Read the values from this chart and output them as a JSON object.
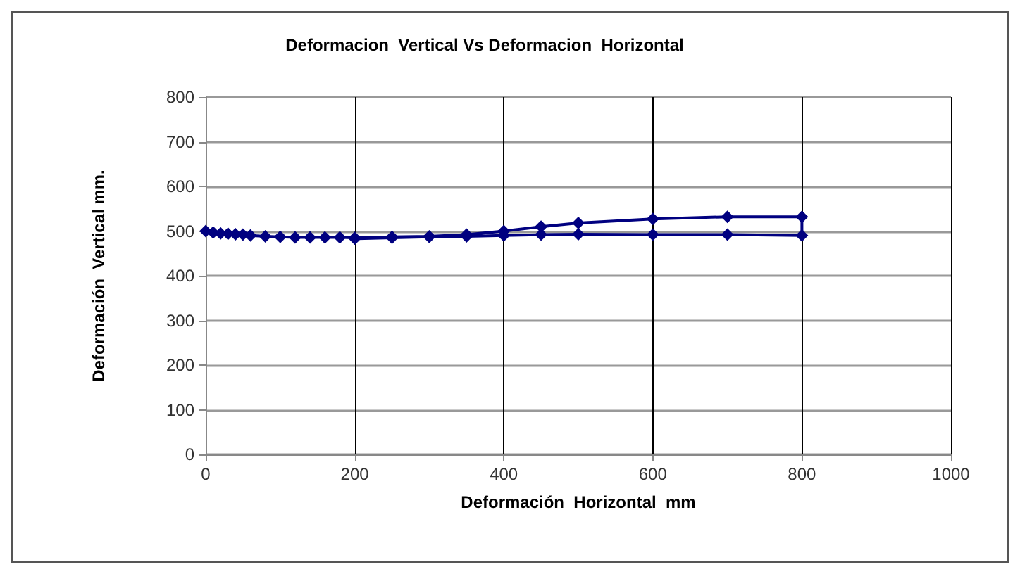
{
  "chart_data": {
    "type": "line",
    "title": "Deformacion  Vertical Vs Deformacion  Horizontal",
    "xlabel": "Deformación  Horizontal  mm",
    "ylabel": "Deformación  Vertical mm.",
    "series": [
      {
        "color": "#000080",
        "x": [
          0,
          10,
          20,
          30,
          40,
          50,
          60,
          80,
          100,
          120,
          140,
          160,
          180,
          200,
          250,
          300,
          350,
          400,
          450,
          500,
          600,
          700,
          800,
          800,
          700,
          600,
          500,
          450,
          400,
          350,
          300,
          250,
          200
        ],
        "values": [
          500,
          497,
          495,
          494,
          493,
          492,
          490,
          488,
          487,
          486,
          486,
          486,
          486,
          485,
          487,
          488,
          492,
          500,
          510,
          518,
          527,
          532,
          532,
          490,
          492,
          492,
          493,
          492,
          490,
          488,
          487,
          485,
          483
        ]
      }
    ],
    "xlim": [
      0,
      1000
    ],
    "xticks": [
      0,
      200,
      400,
      600,
      800,
      1000
    ],
    "ylim": [
      0,
      800
    ],
    "yticks": [
      0,
      100,
      200,
      300,
      400,
      500,
      600,
      700,
      800
    ],
    "grid": true,
    "marker": "diamond",
    "line_style": "solid"
  }
}
